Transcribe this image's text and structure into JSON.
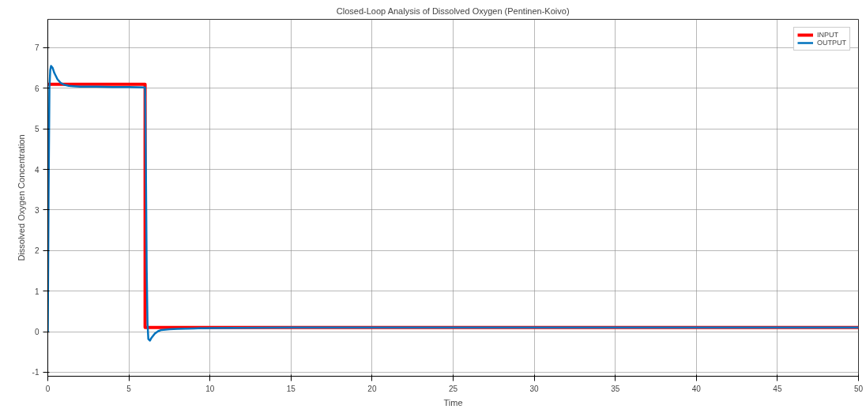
{
  "chart_data": {
    "type": "line",
    "title": "Closed-Loop Analysis of Dissolved Oxygen (Pentinen-Koivo)",
    "xlabel": "Time",
    "ylabel": "Dissolved Oxygen Concentration",
    "xlim": [
      0,
      50
    ],
    "ylim": [
      -1.1,
      7.7
    ],
    "xticks": [
      0,
      5,
      10,
      15,
      20,
      25,
      30,
      35,
      40,
      45,
      50
    ],
    "yticks": [
      -1,
      0,
      1,
      2,
      3,
      4,
      5,
      6,
      7
    ],
    "grid": true,
    "legend": "top right",
    "marker": "none",
    "line_style": "solid",
    "series": [
      {
        "name": "INPUT",
        "color": "#ff0000",
        "x": [
          0,
          6,
          6,
          50
        ],
        "values": [
          6.1,
          6.1,
          0.1,
          0.1
        ]
      },
      {
        "name": "OUTPUT",
        "color": "#0072bd",
        "x": [
          0,
          0.05,
          0.1,
          0.15,
          0.2,
          0.3,
          0.4,
          0.6,
          0.8,
          1.0,
          1.3,
          1.6,
          2,
          3,
          4,
          5,
          6,
          6.05,
          6.1,
          6.15,
          6.2,
          6.3,
          6.4,
          6.6,
          6.8,
          7,
          7.5,
          8,
          9,
          10,
          15,
          20,
          30,
          40,
          50
        ],
        "values": [
          0,
          3.5,
          6.0,
          6.45,
          6.55,
          6.5,
          6.38,
          6.22,
          6.13,
          6.09,
          6.06,
          6.05,
          6.04,
          6.04,
          6.03,
          6.03,
          6.02,
          4.0,
          1.5,
          0.2,
          -0.18,
          -0.22,
          -0.15,
          -0.05,
          0.01,
          0.04,
          0.06,
          0.07,
          0.08,
          0.09,
          0.1,
          0.1,
          0.1,
          0.1,
          0.1
        ]
      }
    ]
  }
}
